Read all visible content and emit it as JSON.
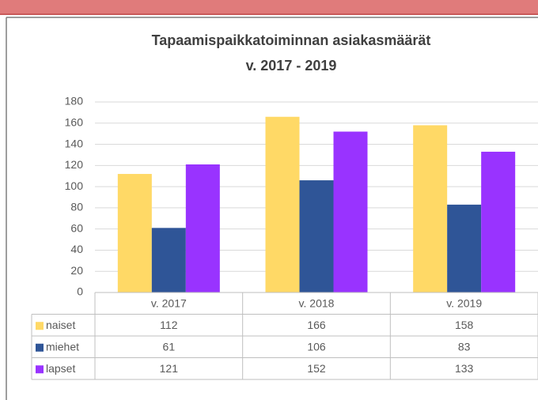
{
  "chart_data": {
    "type": "bar",
    "title": "Tapaamispaikkatoiminnan  asiakasmäärät",
    "subtitle": "v. 2017 - 2019",
    "categories": [
      "v. 2017",
      "v. 2018",
      "v. 2019"
    ],
    "series": [
      {
        "name": "naiset",
        "color": "#ffd966",
        "values": [
          112,
          166,
          158
        ]
      },
      {
        "name": "miehet",
        "color": "#2f5597",
        "values": [
          61,
          106,
          83
        ]
      },
      {
        "name": "lapset",
        "color": "#9933ff",
        "values": [
          121,
          152,
          133
        ]
      }
    ],
    "ylim": [
      0,
      180
    ],
    "yticks": [
      0,
      20,
      40,
      60,
      80,
      100,
      120,
      140,
      160,
      180
    ],
    "grid": true
  }
}
